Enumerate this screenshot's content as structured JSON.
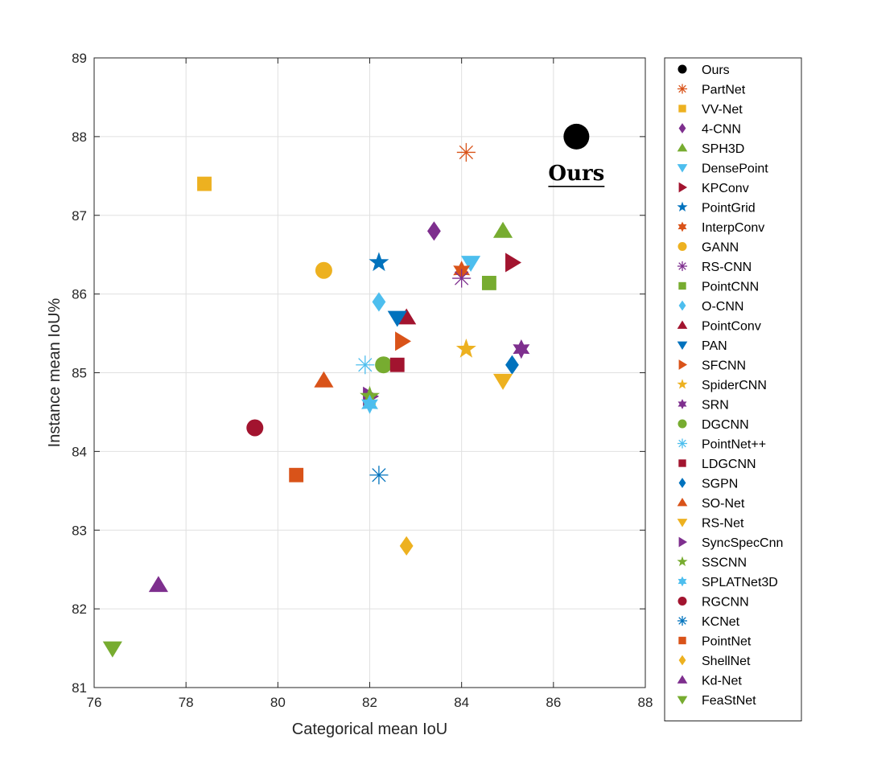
{
  "chart_data": {
    "type": "scatter",
    "title": "",
    "xlabel": "Categorical mean IoU",
    "ylabel": "Instance mean IoU%",
    "xlim": [
      76,
      88
    ],
    "ylim": [
      81,
      89
    ],
    "xticks": [
      76,
      78,
      80,
      82,
      84,
      86,
      88
    ],
    "yticks": [
      81,
      82,
      83,
      84,
      85,
      86,
      87,
      88,
      89
    ],
    "grid": true,
    "legend_position": "right",
    "annotation": {
      "text": "Ours",
      "x": 86.5,
      "y": 87.5
    },
    "series": [
      {
        "name": "Ours",
        "x": 86.5,
        "y": 88.0,
        "marker": "circle",
        "color": "#000000",
        "size": "large"
      },
      {
        "name": "PartNet",
        "x": 84.1,
        "y": 87.8,
        "marker": "asterisk",
        "color": "#d95319"
      },
      {
        "name": "VV-Net",
        "x": 78.4,
        "y": 87.4,
        "marker": "square",
        "color": "#edb120"
      },
      {
        "name": "4-CNN",
        "x": 83.4,
        "y": 86.8,
        "marker": "diamond",
        "color": "#7e2f8e"
      },
      {
        "name": "SPH3D",
        "x": 84.9,
        "y": 86.8,
        "marker": "triangle-up",
        "color": "#77ac30"
      },
      {
        "name": "DensePoint",
        "x": 84.2,
        "y": 86.4,
        "marker": "triangle-down",
        "color": "#4dbeee"
      },
      {
        "name": "KPConv",
        "x": 85.1,
        "y": 86.4,
        "marker": "triangle-right",
        "color": "#a2142f"
      },
      {
        "name": "PointGrid",
        "x": 82.2,
        "y": 86.4,
        "marker": "pentagram",
        "color": "#0072bd"
      },
      {
        "name": "InterpConv",
        "x": 84.0,
        "y": 86.3,
        "marker": "hexagram",
        "color": "#d95319"
      },
      {
        "name": "GANN",
        "x": 81.0,
        "y": 86.3,
        "marker": "circle",
        "color": "#edb120"
      },
      {
        "name": "RS-CNN",
        "x": 84.0,
        "y": 86.2,
        "marker": "asterisk",
        "color": "#7e2f8e"
      },
      {
        "name": "PointCNN",
        "x": 84.6,
        "y": 86.14,
        "marker": "square",
        "color": "#77ac30"
      },
      {
        "name": "O-CNN",
        "x": 82.2,
        "y": 85.9,
        "marker": "diamond",
        "color": "#4dbeee"
      },
      {
        "name": "PointConv",
        "x": 82.8,
        "y": 85.7,
        "marker": "triangle-up",
        "color": "#a2142f"
      },
      {
        "name": "PAN",
        "x": 82.6,
        "y": 85.7,
        "marker": "triangle-down",
        "color": "#0072bd"
      },
      {
        "name": "SFCNN",
        "x": 82.7,
        "y": 85.4,
        "marker": "triangle-right",
        "color": "#d95319"
      },
      {
        "name": "SpiderCNN",
        "x": 84.1,
        "y": 85.3,
        "marker": "pentagram",
        "color": "#edb120"
      },
      {
        "name": "SRN",
        "x": 85.3,
        "y": 85.3,
        "marker": "hexagram",
        "color": "#7e2f8e"
      },
      {
        "name": "DGCNN",
        "x": 82.3,
        "y": 85.1,
        "marker": "circle",
        "color": "#77ac30"
      },
      {
        "name": "PointNet++",
        "x": 81.9,
        "y": 85.1,
        "marker": "asterisk",
        "color": "#4dbeee"
      },
      {
        "name": "LDGCNN",
        "x": 82.6,
        "y": 85.1,
        "marker": "square",
        "color": "#a2142f"
      },
      {
        "name": "SGPN",
        "x": 85.1,
        "y": 85.1,
        "marker": "diamond",
        "color": "#0072bd"
      },
      {
        "name": "SO-Net",
        "x": 81.0,
        "y": 84.9,
        "marker": "triangle-up",
        "color": "#d95319"
      },
      {
        "name": "RS-Net",
        "x": 84.9,
        "y": 84.9,
        "marker": "triangle-down",
        "color": "#edb120"
      },
      {
        "name": "SyncSpecCnn",
        "x": 82.0,
        "y": 84.7,
        "marker": "triangle-right",
        "color": "#7e2f8e"
      },
      {
        "name": "SSCNN",
        "x": 82.0,
        "y": 84.7,
        "marker": "pentagram",
        "color": "#77ac30"
      },
      {
        "name": "SPLATNet3D",
        "x": 82.0,
        "y": 84.6,
        "marker": "hexagram",
        "color": "#4dbeee"
      },
      {
        "name": "RGCNN",
        "x": 79.5,
        "y": 84.3,
        "marker": "circle",
        "color": "#a2142f"
      },
      {
        "name": "KCNet",
        "x": 82.2,
        "y": 83.7,
        "marker": "asterisk",
        "color": "#0072bd"
      },
      {
        "name": "PointNet",
        "x": 80.4,
        "y": 83.7,
        "marker": "square",
        "color": "#d95319"
      },
      {
        "name": "ShellNet",
        "x": 82.8,
        "y": 82.8,
        "marker": "diamond",
        "color": "#edb120"
      },
      {
        "name": "Kd-Net",
        "x": 77.4,
        "y": 82.3,
        "marker": "triangle-up",
        "color": "#7e2f8e"
      },
      {
        "name": "FeaStNet",
        "x": 76.4,
        "y": 81.5,
        "marker": "triangle-down",
        "color": "#77ac30"
      }
    ]
  },
  "colors": {
    "axis": "#262626",
    "grid": "#e0e0e0",
    "legend_border": "#262626",
    "background": "#ffffff"
  }
}
